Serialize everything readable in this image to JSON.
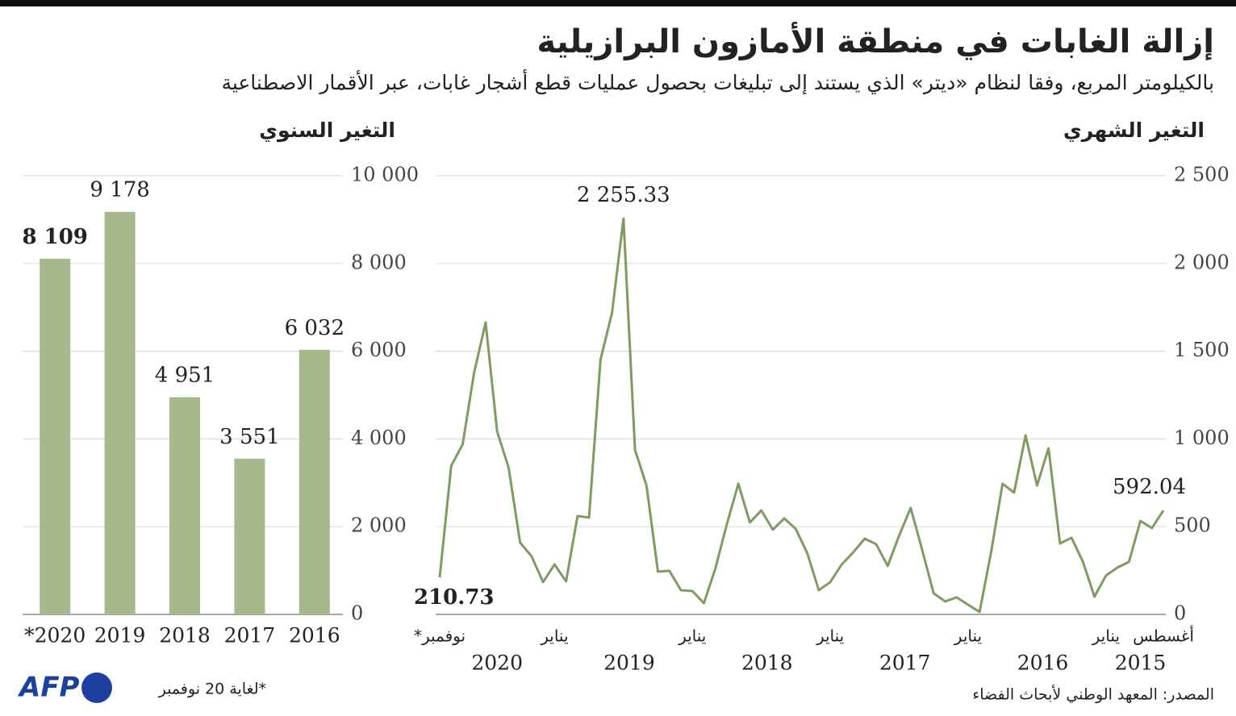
{
  "title": "إزالة الغابات في منطقة الأمازون البرازيلية",
  "subtitle": "بالكيلومتر المربع، وفقا لنظام «ديتر» الذي يستند إلى تبليغات بحصول عمليات قطع أشجار غابات، عبر الأقمار الاصطناعية",
  "source": "المصدر: المعهد الوطني لأبحاث الفضاء",
  "logo": "AFP",
  "chart_data": [
    {
      "type": "bar",
      "title": "التغير السنوي",
      "note": "*لغاية 20 نوفمبر",
      "categories": [
        "*2020",
        "2019",
        "2018",
        "2017",
        "2016"
      ],
      "values": [
        8109,
        9178,
        4951,
        3551,
        6032
      ],
      "value_labels": [
        "8 109",
        "9 178",
        "4 951",
        "3 551",
        "6 032"
      ],
      "color": "#a5b98c",
      "ylim": [
        0,
        10000
      ],
      "yticks": [
        0,
        {
          "value": 2000,
          "label": "2 000"
        },
        {
          "value": 4000,
          "label": "4 000"
        },
        {
          "value": 6000,
          "label": "6 000"
        },
        {
          "value": 8000,
          "label": "8 000"
        },
        {
          "value": 10000,
          "label": "10 000"
        }
      ],
      "grid": true
    },
    {
      "type": "line",
      "title": "التغير الشهري",
      "x": [
        "أغسطس",
        null,
        null,
        null,
        null,
        "يناير",
        null,
        null,
        null,
        null,
        null,
        null,
        null,
        null,
        null,
        null,
        null,
        "يناير",
        null,
        null,
        null,
        null,
        null,
        null,
        null,
        null,
        null,
        null,
        null,
        "يناير",
        null,
        null,
        null,
        null,
        null,
        null,
        null,
        null,
        null,
        null,
        null,
        "يناير",
        null,
        null,
        null,
        null,
        null,
        null,
        null,
        null,
        null,
        null,
        null,
        "يناير",
        null,
        null,
        null,
        null,
        null,
        null,
        null,
        null,
        null,
        "نوفمبر*"
      ],
      "x_year": [
        "2015",
        "2015",
        "2015",
        "2015",
        "2015",
        "2016",
        "2016",
        "2016",
        "2016",
        "2016",
        "2016",
        "2016",
        "2016",
        "2016",
        "2016",
        "2016",
        "2016",
        "2017",
        "2017",
        "2017",
        "2017",
        "2017",
        "2017",
        "2017",
        "2017",
        "2017",
        "2017",
        "2017",
        "2017",
        "2018",
        "2018",
        "2018",
        "2018",
        "2018",
        "2018",
        "2018",
        "2018",
        "2018",
        "2018",
        "2018",
        "2018",
        "2019",
        "2019",
        "2019",
        "2019",
        "2019",
        "2019",
        "2019",
        "2019",
        "2019",
        "2019",
        "2019",
        "2019",
        "2020",
        "2020",
        "2020",
        "2020",
        "2020",
        "2020",
        "2020",
        "2020",
        "2020",
        "2020",
        "2020"
      ],
      "series": [
        {
          "name": "التغير الشهري",
          "color": "#7f9b62",
          "values": [
            592.04,
            492,
            533,
            299,
            267,
            221,
            101,
            299,
            437,
            404,
            947,
            735,
            1020,
            694,
            745,
            354,
            14,
            55,
            97,
            74,
            120,
            368,
            607,
            450,
            276,
            400,
            432,
            354,
            285,
            184,
            138,
            349,
            487,
            547,
            483,
            593,
            524,
            745,
            515,
            262,
            64,
            133,
            138,
            248,
            244,
            735,
            938,
            2255.33,
            1719,
            1452,
            552,
            561,
            188,
            285,
            184,
            331,
            409,
            836,
            1043,
            1664,
            1379,
            970,
            846,
            210.73
          ],
          "value_labels": [
            "592.04",
            null,
            null,
            null,
            null,
            null,
            null,
            null,
            null,
            null,
            null,
            null,
            null,
            null,
            null,
            null,
            null,
            null,
            null,
            null,
            null,
            null,
            null,
            null,
            null,
            null,
            null,
            null,
            null,
            null,
            null,
            null,
            null,
            null,
            null,
            null,
            null,
            null,
            null,
            null,
            null,
            null,
            null,
            null,
            null,
            null,
            null,
            "2 255.33",
            null,
            null,
            null,
            null,
            null,
            null,
            null,
            null,
            null,
            null,
            null,
            null,
            null,
            null,
            null,
            "210.73"
          ]
        }
      ],
      "ylim": [
        0,
        2500
      ],
      "yticks": [
        0,
        500,
        {
          "value": 1000,
          "label": "1 000"
        },
        {
          "value": 1500,
          "label": "1 500"
        },
        {
          "value": 2000,
          "label": "2 000"
        },
        {
          "value": 2500,
          "label": "2 500"
        }
      ],
      "grid": true
    }
  ]
}
